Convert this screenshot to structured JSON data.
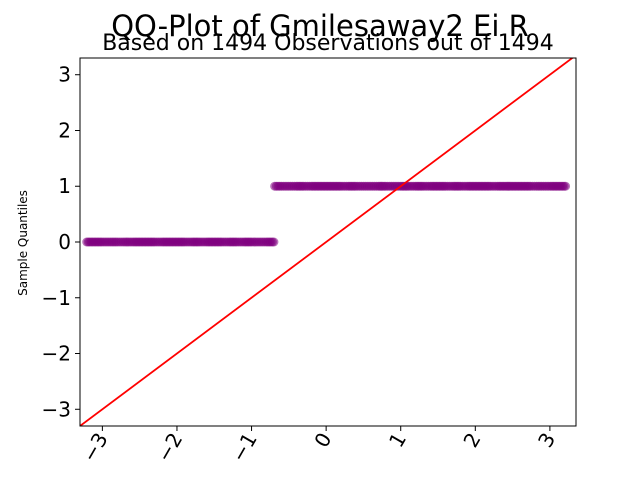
{
  "chart_data": {
    "type": "scatter",
    "title": "QQ-Plot of Gmilesaway2 Ei R",
    "subtitle": "Based on 1494 Observations out of 1494",
    "xlabel": "",
    "ylabel": "Sample Quantiles",
    "xlim": [
      -3.3,
      3.35
    ],
    "ylim": [
      -3.3,
      3.3
    ],
    "x_ticks": [
      -3,
      -2,
      -1,
      0,
      1,
      2,
      3
    ],
    "x_tick_labels": [
      "−3",
      "−2",
      "−1",
      "0",
      "1",
      "2",
      "3"
    ],
    "y_ticks": [
      -3,
      -2,
      -1,
      0,
      1,
      2,
      3
    ],
    "y_tick_labels": [
      "−3",
      "−2",
      "−1",
      "0",
      "1",
      "2",
      "3"
    ],
    "grid": false,
    "series": [
      {
        "kind": "points",
        "color": "#800080",
        "opacity": 0.55,
        "points": [
          {
            "x": -3.21,
            "y": 0
          },
          {
            "x": -3.01,
            "y": 0
          },
          {
            "x": -2.89,
            "y": 0
          },
          {
            "x": -2.8,
            "y": 0
          },
          {
            "x": -2.72,
            "y": 0
          },
          {
            "x": -2.65,
            "y": 0
          },
          {
            "x": -2.58,
            "y": 0
          },
          {
            "x": -2.5,
            "y": 0
          },
          {
            "x": -2.4,
            "y": 0
          },
          {
            "x": -2.3,
            "y": 0
          },
          {
            "x": -2.2,
            "y": 0
          },
          {
            "x": -2.1,
            "y": 0
          },
          {
            "x": -2.0,
            "y": 0
          },
          {
            "x": -1.9,
            "y": 0
          },
          {
            "x": -1.8,
            "y": 0
          },
          {
            "x": -1.7,
            "y": 0
          },
          {
            "x": -1.6,
            "y": 0
          },
          {
            "x": -1.5,
            "y": 0
          },
          {
            "x": -1.4,
            "y": 0
          },
          {
            "x": -1.3,
            "y": 0
          },
          {
            "x": -1.2,
            "y": 0
          },
          {
            "x": -1.1,
            "y": 0
          },
          {
            "x": -1.0,
            "y": 0
          },
          {
            "x": -0.9,
            "y": 0
          },
          {
            "x": -0.8,
            "y": 0
          },
          {
            "x": -0.7,
            "y": 0
          },
          {
            "x": -0.69,
            "y": 1
          },
          {
            "x": -0.6,
            "y": 1
          },
          {
            "x": -0.5,
            "y": 1
          },
          {
            "x": -0.4,
            "y": 1
          },
          {
            "x": -0.3,
            "y": 1
          },
          {
            "x": -0.2,
            "y": 1
          },
          {
            "x": -0.1,
            "y": 1
          },
          {
            "x": 0.0,
            "y": 1
          },
          {
            "x": 0.1,
            "y": 1
          },
          {
            "x": 0.2,
            "y": 1
          },
          {
            "x": 0.3,
            "y": 1
          },
          {
            "x": 0.4,
            "y": 1
          },
          {
            "x": 0.5,
            "y": 1
          },
          {
            "x": 0.6,
            "y": 1
          },
          {
            "x": 0.7,
            "y": 1
          },
          {
            "x": 0.8,
            "y": 1
          },
          {
            "x": 0.9,
            "y": 1
          },
          {
            "x": 1.0,
            "y": 1
          },
          {
            "x": 1.1,
            "y": 1
          },
          {
            "x": 1.2,
            "y": 1
          },
          {
            "x": 1.3,
            "y": 1
          },
          {
            "x": 1.4,
            "y": 1
          },
          {
            "x": 1.5,
            "y": 1
          },
          {
            "x": 1.6,
            "y": 1
          },
          {
            "x": 1.7,
            "y": 1
          },
          {
            "x": 1.8,
            "y": 1
          },
          {
            "x": 1.9,
            "y": 1
          },
          {
            "x": 2.0,
            "y": 1
          },
          {
            "x": 2.1,
            "y": 1
          },
          {
            "x": 2.2,
            "y": 1
          },
          {
            "x": 2.3,
            "y": 1
          },
          {
            "x": 2.4,
            "y": 1
          },
          {
            "x": 2.5,
            "y": 1
          },
          {
            "x": 2.6,
            "y": 1
          },
          {
            "x": 2.66,
            "y": 1
          },
          {
            "x": 2.74,
            "y": 1
          },
          {
            "x": 2.82,
            "y": 1
          },
          {
            "x": 2.89,
            "y": 1
          },
          {
            "x": 3.01,
            "y": 1
          },
          {
            "x": 3.21,
            "y": 1
          }
        ]
      },
      {
        "kind": "reference-line",
        "color": "#ff0000",
        "slope": 1,
        "intercept": 0
      }
    ]
  }
}
